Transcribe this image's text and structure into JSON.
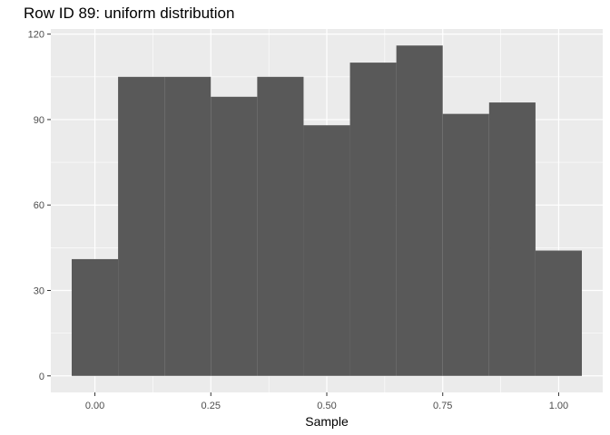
{
  "chart_data": {
    "type": "bar",
    "title": "Row ID 89: uniform distribution",
    "xlabel": "Sample",
    "ylabel": "",
    "bin_width": 0.1,
    "bins": [
      {
        "x": 0.0,
        "count": 41
      },
      {
        "x": 0.1,
        "count": 105
      },
      {
        "x": 0.2,
        "count": 105
      },
      {
        "x": 0.3,
        "count": 98
      },
      {
        "x": 0.4,
        "count": 105
      },
      {
        "x": 0.5,
        "count": 88
      },
      {
        "x": 0.6,
        "count": 110
      },
      {
        "x": 0.7,
        "count": 116
      },
      {
        "x": 0.8,
        "count": 92
      },
      {
        "x": 0.9,
        "count": 96
      },
      {
        "x": 1.0,
        "count": 44
      }
    ],
    "xlim": [
      -0.095,
      1.095
    ],
    "ylim": [
      -5.8,
      121.8
    ],
    "x_ticks": [
      {
        "value": 0.0,
        "label": "0.00"
      },
      {
        "value": 0.25,
        "label": "0.25"
      },
      {
        "value": 0.5,
        "label": "0.50"
      },
      {
        "value": 0.75,
        "label": "0.75"
      },
      {
        "value": 1.0,
        "label": "1.00"
      }
    ],
    "y_ticks": [
      {
        "value": 0,
        "label": "0"
      },
      {
        "value": 30,
        "label": "30"
      },
      {
        "value": 60,
        "label": "60"
      },
      {
        "value": 90,
        "label": "90"
      },
      {
        "value": 120,
        "label": "120"
      }
    ],
    "grid": true,
    "bar_color": "#595959",
    "panel_color": "#ebebeb",
    "grid_color": "#ffffff"
  }
}
